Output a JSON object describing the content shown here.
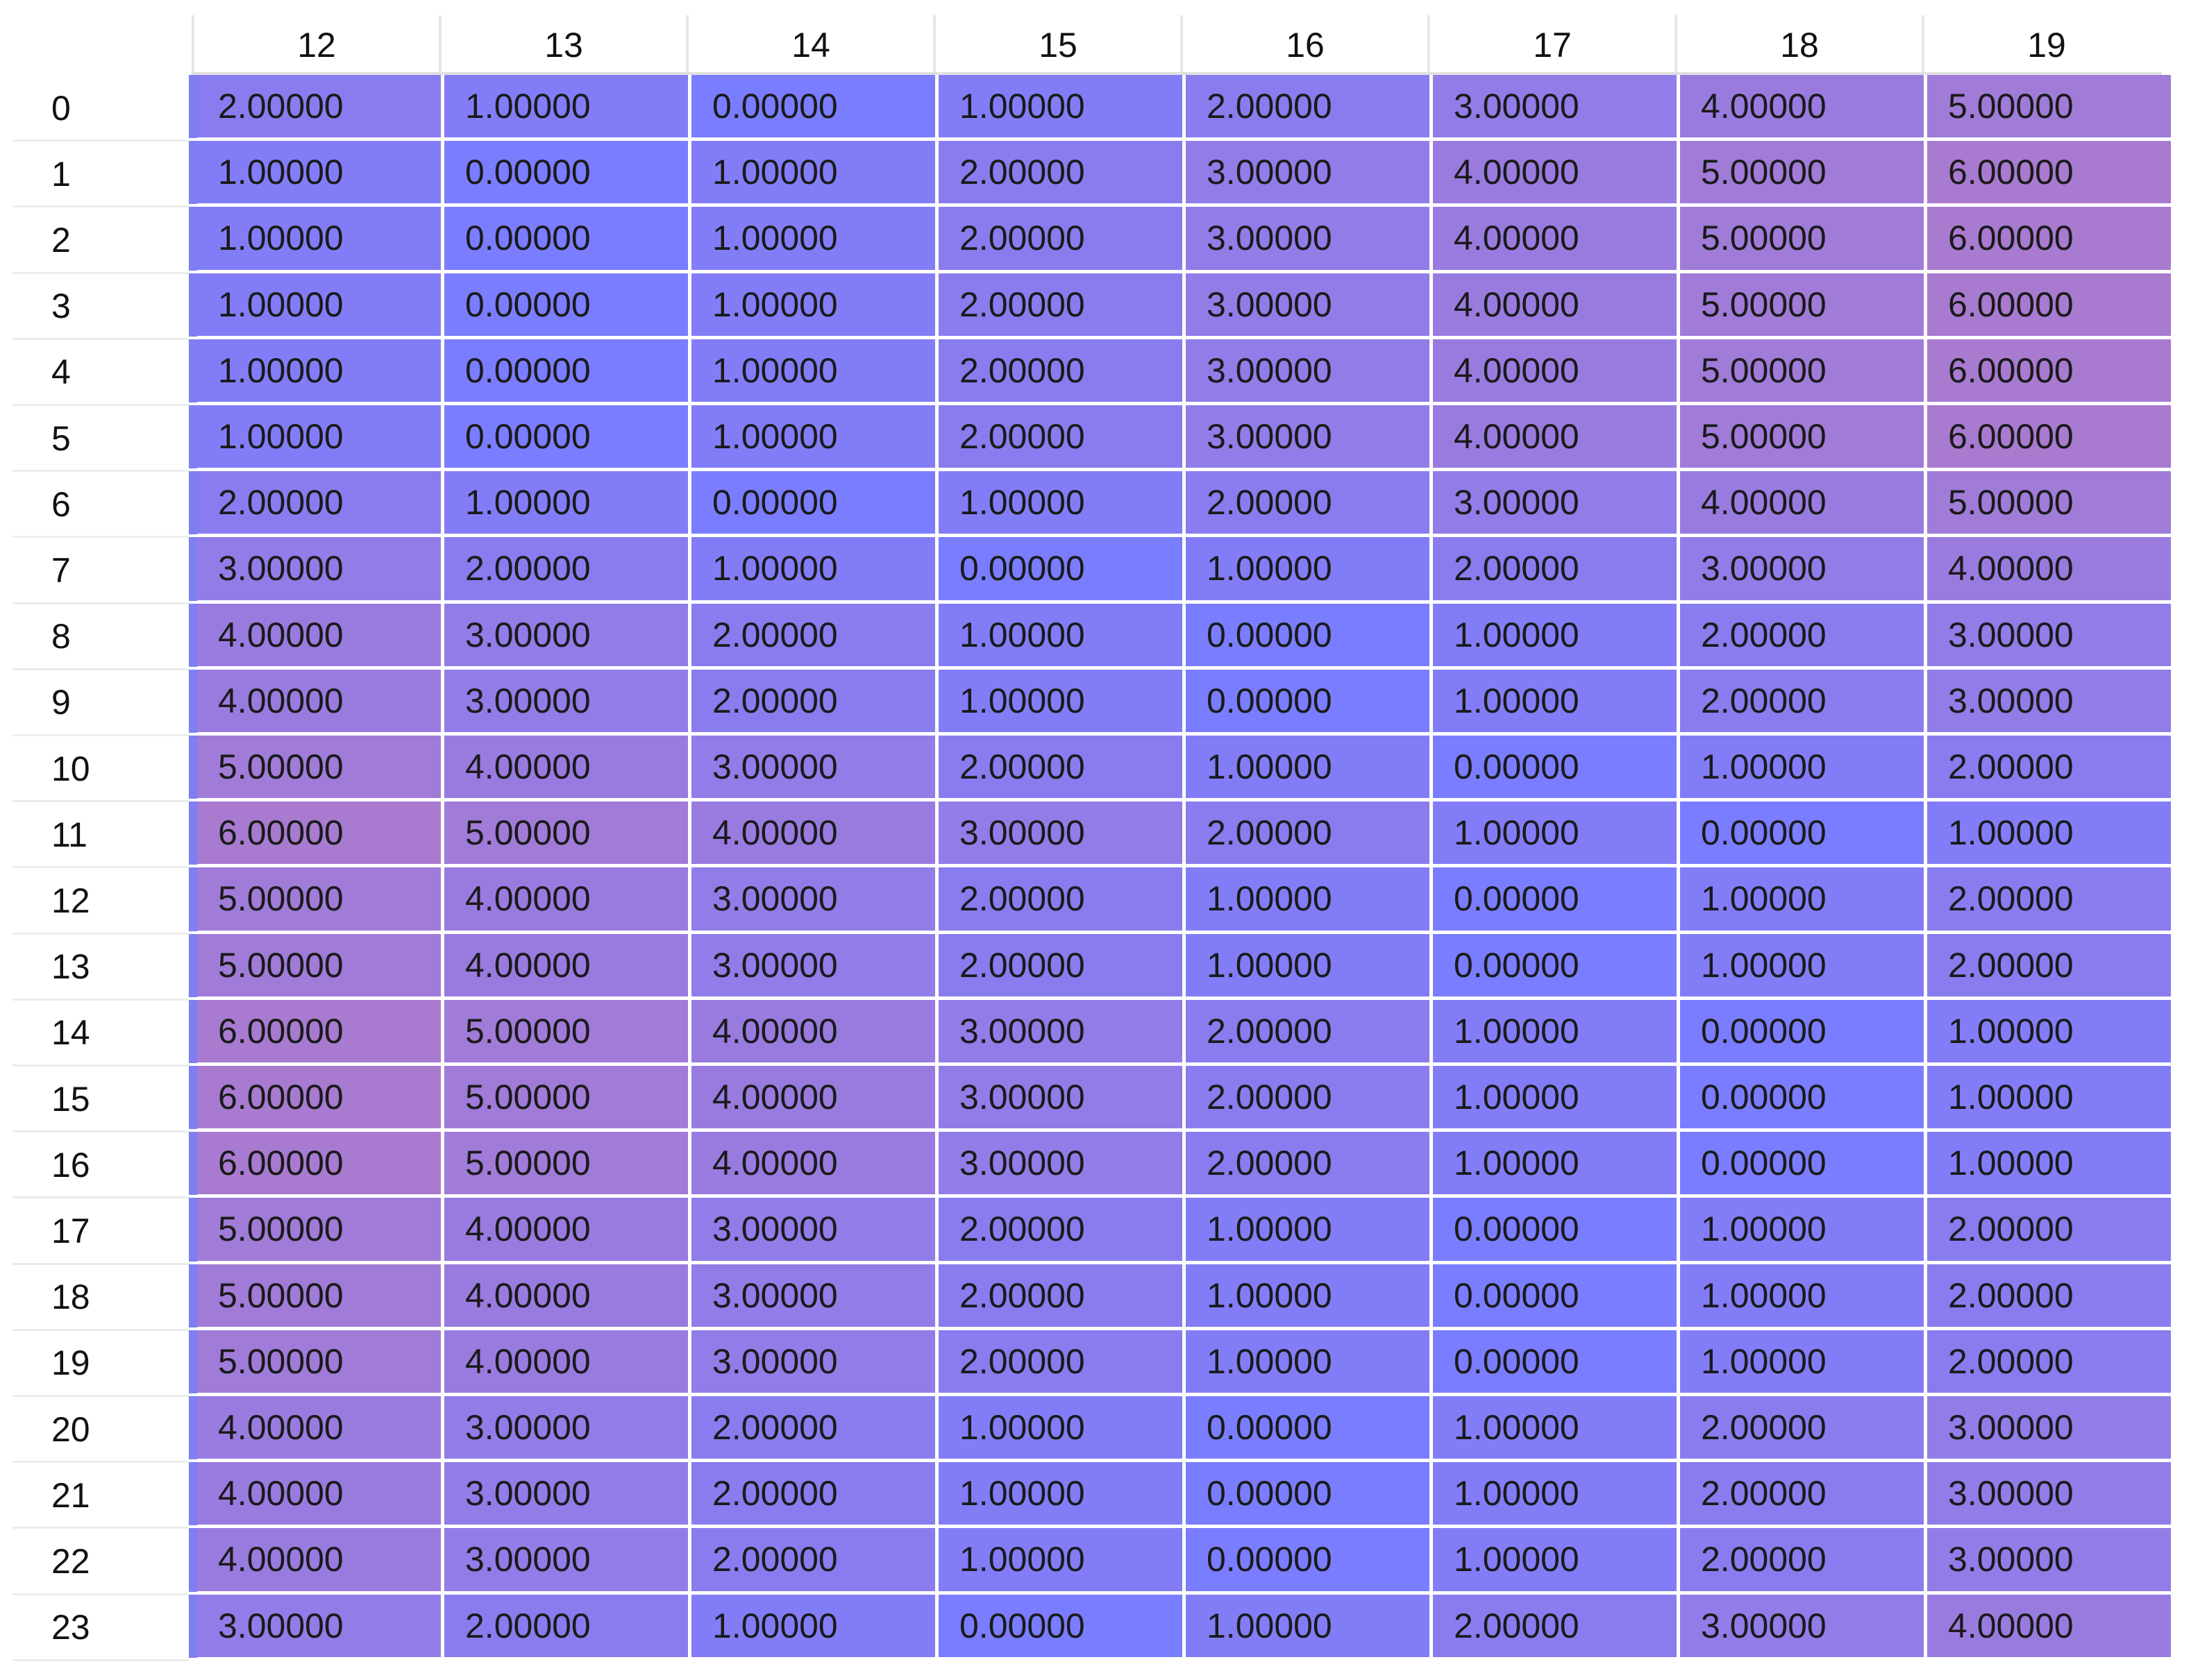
{
  "table": {
    "columns": [
      "12",
      "13",
      "14",
      "15",
      "16",
      "17",
      "18",
      "19"
    ],
    "row_labels": [
      "0",
      "1",
      "2",
      "3",
      "4",
      "5",
      "6",
      "7",
      "8",
      "9",
      "10",
      "11",
      "12",
      "13",
      "14",
      "15",
      "16",
      "17",
      "18",
      "19",
      "20",
      "21",
      "22",
      "23"
    ],
    "rows": [
      [
        "2.00000",
        "1.00000",
        "0.00000",
        "1.00000",
        "2.00000",
        "3.00000",
        "4.00000",
        "5.00000"
      ],
      [
        "1.00000",
        "0.00000",
        "1.00000",
        "2.00000",
        "3.00000",
        "4.00000",
        "5.00000",
        "6.00000"
      ],
      [
        "1.00000",
        "0.00000",
        "1.00000",
        "2.00000",
        "3.00000",
        "4.00000",
        "5.00000",
        "6.00000"
      ],
      [
        "1.00000",
        "0.00000",
        "1.00000",
        "2.00000",
        "3.00000",
        "4.00000",
        "5.00000",
        "6.00000"
      ],
      [
        "1.00000",
        "0.00000",
        "1.00000",
        "2.00000",
        "3.00000",
        "4.00000",
        "5.00000",
        "6.00000"
      ],
      [
        "1.00000",
        "0.00000",
        "1.00000",
        "2.00000",
        "3.00000",
        "4.00000",
        "5.00000",
        "6.00000"
      ],
      [
        "2.00000",
        "1.00000",
        "0.00000",
        "1.00000",
        "2.00000",
        "3.00000",
        "4.00000",
        "5.00000"
      ],
      [
        "3.00000",
        "2.00000",
        "1.00000",
        "0.00000",
        "1.00000",
        "2.00000",
        "3.00000",
        "4.00000"
      ],
      [
        "4.00000",
        "3.00000",
        "2.00000",
        "1.00000",
        "0.00000",
        "1.00000",
        "2.00000",
        "3.00000"
      ],
      [
        "4.00000",
        "3.00000",
        "2.00000",
        "1.00000",
        "0.00000",
        "1.00000",
        "2.00000",
        "3.00000"
      ],
      [
        "5.00000",
        "4.00000",
        "3.00000",
        "2.00000",
        "1.00000",
        "0.00000",
        "1.00000",
        "2.00000"
      ],
      [
        "6.00000",
        "5.00000",
        "4.00000",
        "3.00000",
        "2.00000",
        "1.00000",
        "0.00000",
        "1.00000"
      ],
      [
        "5.00000",
        "4.00000",
        "3.00000",
        "2.00000",
        "1.00000",
        "0.00000",
        "1.00000",
        "2.00000"
      ],
      [
        "5.00000",
        "4.00000",
        "3.00000",
        "2.00000",
        "1.00000",
        "0.00000",
        "1.00000",
        "2.00000"
      ],
      [
        "6.00000",
        "5.00000",
        "4.00000",
        "3.00000",
        "2.00000",
        "1.00000",
        "0.00000",
        "1.00000"
      ],
      [
        "6.00000",
        "5.00000",
        "4.00000",
        "3.00000",
        "2.00000",
        "1.00000",
        "0.00000",
        "1.00000"
      ],
      [
        "6.00000",
        "5.00000",
        "4.00000",
        "3.00000",
        "2.00000",
        "1.00000",
        "0.00000",
        "1.00000"
      ],
      [
        "5.00000",
        "4.00000",
        "3.00000",
        "2.00000",
        "1.00000",
        "0.00000",
        "1.00000",
        "2.00000"
      ],
      [
        "5.00000",
        "4.00000",
        "3.00000",
        "2.00000",
        "1.00000",
        "0.00000",
        "1.00000",
        "2.00000"
      ],
      [
        "5.00000",
        "4.00000",
        "3.00000",
        "2.00000",
        "1.00000",
        "0.00000",
        "1.00000",
        "2.00000"
      ],
      [
        "4.00000",
        "3.00000",
        "2.00000",
        "1.00000",
        "0.00000",
        "1.00000",
        "2.00000",
        "3.00000"
      ],
      [
        "4.00000",
        "3.00000",
        "2.00000",
        "1.00000",
        "0.00000",
        "1.00000",
        "2.00000",
        "3.00000"
      ],
      [
        "4.00000",
        "3.00000",
        "2.00000",
        "1.00000",
        "0.00000",
        "1.00000",
        "2.00000",
        "3.00000"
      ],
      [
        "3.00000",
        "2.00000",
        "1.00000",
        "0.00000",
        "1.00000",
        "2.00000",
        "3.00000",
        "4.00000"
      ]
    ]
  },
  "colors": {
    "low": "#7a7dff",
    "high": "#a87ad0",
    "left_bar": "#7f7ef2",
    "grid_line": "#ffffff",
    "header_divider": "#e0e0e0",
    "text": "#1a1a1a"
  }
}
